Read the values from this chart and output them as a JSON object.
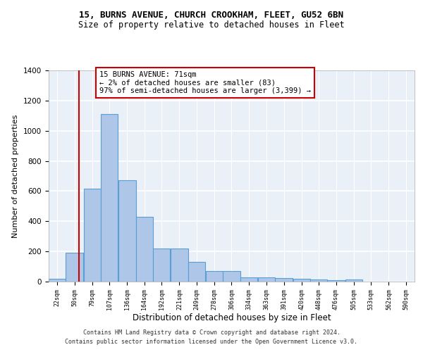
{
  "title1": "15, BURNS AVENUE, CHURCH CROOKHAM, FLEET, GU52 6BN",
  "title2": "Size of property relative to detached houses in Fleet",
  "xlabel": "Distribution of detached houses by size in Fleet",
  "ylabel": "Number of detached properties",
  "bin_edges": [
    22,
    50,
    79,
    107,
    136,
    164,
    192,
    221,
    249,
    278,
    306,
    334,
    363,
    391,
    420,
    448,
    476,
    505,
    533,
    562,
    590
  ],
  "bar_heights": [
    20,
    190,
    615,
    1110,
    670,
    430,
    220,
    220,
    130,
    70,
    70,
    30,
    30,
    25,
    20,
    15,
    10,
    15,
    0,
    0,
    0
  ],
  "bar_color": "#aec6e8",
  "bar_edgecolor": "#5a9fd4",
  "bar_linewidth": 0.8,
  "background_color": "#eaf0f8",
  "grid_color": "#ffffff",
  "vline_x": 71,
  "vline_color": "#cc0000",
  "annotation_text": "15 BURNS AVENUE: 71sqm\n← 2% of detached houses are smaller (83)\n97% of semi-detached houses are larger (3,399) →",
  "annotation_fontsize": 7.5,
  "ylim": [
    0,
    1400
  ],
  "yticks": [
    0,
    200,
    400,
    600,
    800,
    1000,
    1200,
    1400
  ],
  "tick_labels": [
    "22sqm",
    "50sqm",
    "79sqm",
    "107sqm",
    "136sqm",
    "164sqm",
    "192sqm",
    "221sqm",
    "249sqm",
    "278sqm",
    "306sqm",
    "334sqm",
    "363sqm",
    "391sqm",
    "420sqm",
    "448sqm",
    "476sqm",
    "505sqm",
    "533sqm",
    "562sqm",
    "590sqm"
  ],
  "footer1": "Contains HM Land Registry data © Crown copyright and database right 2024.",
  "footer2": "Contains public sector information licensed under the Open Government Licence v3.0.",
  "title1_fontsize": 9,
  "title2_fontsize": 8.5,
  "xlabel_fontsize": 8.5,
  "ylabel_fontsize": 8
}
